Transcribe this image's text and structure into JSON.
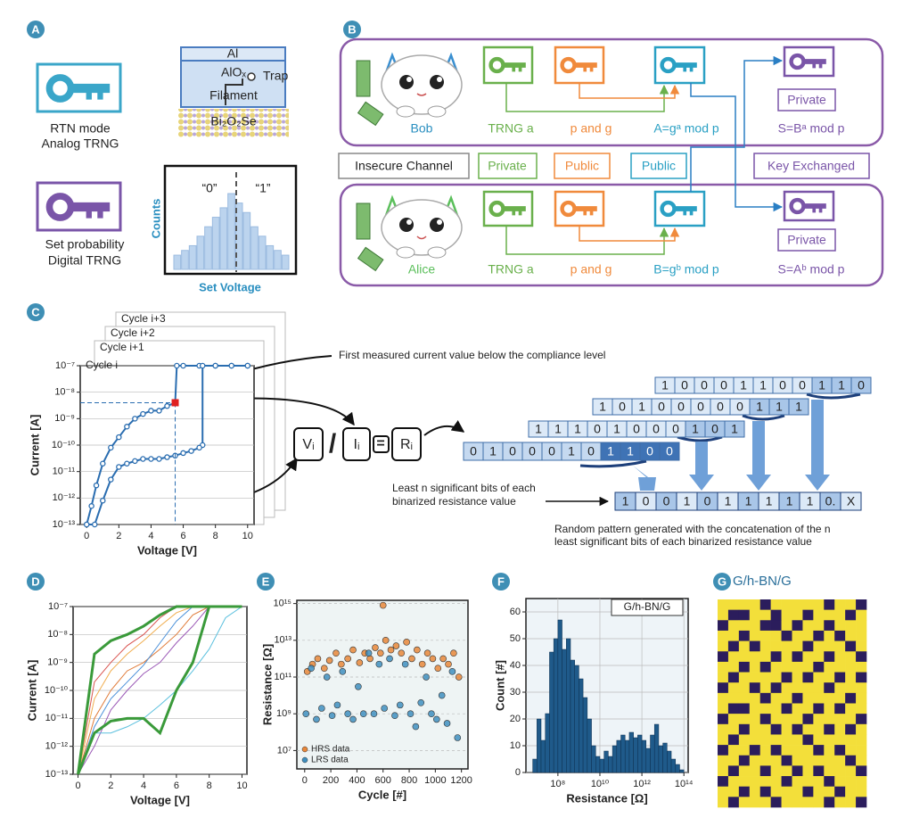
{
  "labels": [
    "A",
    "B",
    "C",
    "D",
    "E",
    "F",
    "G"
  ],
  "panel_a": {
    "rtn": [
      "RTN mode",
      "Analog TRNG"
    ],
    "device": {
      "top": "Al",
      "oxide": "AlOₓ",
      "trap": "Trap",
      "filament": "Filament",
      "substrate": "Bi₂O₂Se"
    },
    "set": [
      "Set probability",
      "Digital TRNG"
    ],
    "histogram": {
      "zero": "“0”",
      "one": "“1”",
      "y_label": "Counts",
      "x_label": "Set Voltage",
      "counts": [
        3,
        4,
        5,
        7,
        9,
        11,
        13,
        16,
        14,
        12,
        9,
        7,
        5,
        4,
        3
      ]
    }
  },
  "panel_b": {
    "bob": {
      "name": "Bob",
      "trng": "TRNG a",
      "params": "p and g",
      "public": "A=gᵃ mod p",
      "private": "Private",
      "shared": "S=Bᵃ mod p"
    },
    "alice": {
      "name": "Alice",
      "trng": "TRNG a",
      "params": "p and g",
      "public": "B=gᵇ mod p",
      "private": "Private",
      "shared": "S=Aᵇ mod p"
    },
    "legend": [
      "Insecure Channel",
      "Private",
      "Public",
      "Public",
      "Key Exchanged"
    ]
  },
  "panel_c": {
    "cycles": [
      "Cycle i+3",
      "Cycle i+2",
      "Cycle i+1",
      "Cycle i"
    ],
    "annotation": "First measured current value below the compliance level",
    "formula": [
      "Vᵢ",
      "/",
      "Iᵢ",
      "=",
      "Rᵢ"
    ],
    "bit_rows": [
      [
        "1",
        "0",
        "0",
        "0",
        "1",
        "1",
        "0",
        "0",
        "1",
        "1",
        "0"
      ],
      [
        "1",
        "0",
        "1",
        "0",
        "0",
        "0",
        "0",
        "0",
        "1",
        "1",
        "1"
      ],
      [
        "1",
        "1",
        "1",
        "0",
        "1",
        "0",
        "0",
        "0",
        "1",
        "0",
        "1"
      ],
      [
        "0",
        "1",
        "0",
        "0",
        "0",
        "1",
        "0",
        "1",
        "1",
        "0",
        "0"
      ]
    ],
    "result": [
      "1",
      "0",
      "0",
      "1",
      "0",
      "1",
      "1",
      "1",
      "1",
      "1",
      "0.",
      "X"
    ],
    "note_bits": [
      "Least n significant bits of each",
      "binarized resistance value"
    ],
    "note_pattern": [
      "Random pattern generated with the concatenation of the n",
      "least significant bits of each binarized resistance value"
    ]
  },
  "chart_data": [
    {
      "type": "line",
      "xlabel": "Voltage [V]",
      "ylabel": "Current [A]",
      "log_y": true,
      "xlim": [
        -0.4,
        10.4
      ],
      "ylim": [
        1e-13,
        1e-07
      ],
      "xticks": [
        0,
        2,
        4,
        6,
        8,
        10
      ],
      "yticks": [
        {
          "value": 1e-13,
          "label": "10⁻¹³"
        },
        {
          "value": 1e-12,
          "label": "10⁻¹²"
        },
        {
          "value": 1e-11,
          "label": "10⁻¹¹"
        },
        {
          "value": 1e-10,
          "label": "10⁻¹⁰"
        },
        {
          "value": 1e-09,
          "label": "10⁻⁹"
        },
        {
          "value": 1e-08,
          "label": "10⁻⁸"
        },
        {
          "value": 1e-07,
          "label": "10⁻⁷"
        }
      ],
      "grid": true,
      "markers": true,
      "series": [
        {
          "color": "#2a6db0",
          "width": 2,
          "x": [
            0,
            0.3,
            0.6,
            1,
            1.5,
            2,
            2.5,
            3,
            3.5,
            4,
            4.5,
            5,
            5.5,
            5.6,
            6,
            7,
            8,
            9,
            10
          ],
          "values": [
            1e-13,
            5e-13,
            3e-12,
            2e-11,
            8e-11,
            2e-10,
            5e-10,
            1e-09,
            1.5e-09,
            2e-09,
            2e-09,
            3e-09,
            4e-09,
            1e-07,
            1e-07,
            1e-07,
            1e-07,
            1e-07,
            1e-07
          ]
        },
        {
          "color": "#2a6db0",
          "width": 2,
          "x": [
            10,
            9,
            8,
            7.2,
            7.2,
            7,
            6.5,
            6,
            5.5,
            5,
            4.5,
            4,
            3.5,
            3,
            2.5,
            2,
            1.5,
            1,
            0.5,
            0
          ],
          "values": [
            1e-07,
            1e-07,
            1e-07,
            1e-07,
            1e-10,
            8e-11,
            6e-11,
            5e-11,
            4e-11,
            3.5e-11,
            3e-11,
            3e-11,
            3e-11,
            2.5e-11,
            2e-11,
            1.5e-11,
            5e-12,
            8e-13,
            1e-13,
            1e-13
          ]
        }
      ],
      "highlight": {
        "x": 5.5,
        "y": 4e-09,
        "color": "#e02020"
      }
    },
    {
      "type": "line",
      "xlabel": "Voltage [V]",
      "ylabel": "Current [A]",
      "log_y": true,
      "xlim": [
        -0.3,
        10.3
      ],
      "ylim": [
        1e-13,
        1e-07
      ],
      "xticks": [
        0,
        2,
        4,
        6,
        8,
        10
      ],
      "yticks": [
        {
          "value": 1e-13,
          "label": "10⁻¹³"
        },
        {
          "value": 1e-12,
          "label": "10⁻¹²"
        },
        {
          "value": 1e-11,
          "label": "10⁻¹¹"
        },
        {
          "value": 1e-10,
          "label": "10⁻¹⁰"
        },
        {
          "value": 1e-09,
          "label": "10⁻⁹"
        },
        {
          "value": 1e-08,
          "label": "10⁻⁸"
        },
        {
          "value": 1e-07,
          "label": "10⁻⁷"
        }
      ],
      "grid": true,
      "markers": false,
      "x": [
        0,
        1,
        2,
        3,
        4,
        5,
        6,
        7,
        8,
        9,
        10
      ],
      "series": [
        {
          "color": "#e07b39",
          "width": 1,
          "values": [
            1e-13,
            1e-11,
            1e-10,
            5e-10,
            1e-09,
            3e-09,
            1e-08,
            5e-08,
            1e-07,
            1e-07,
            1e-07
          ]
        },
        {
          "color": "#4a90d9",
          "width": 1,
          "values": [
            1e-13,
            5e-12,
            5e-11,
            2e-10,
            8e-10,
            5e-09,
            3e-08,
            1e-07,
            1e-07,
            1e-07,
            1e-07
          ]
        },
        {
          "color": "#d9534f",
          "width": 1,
          "values": [
            1e-13,
            2e-10,
            1e-09,
            4e-09,
            1e-08,
            4e-08,
            1e-07,
            1e-07,
            1e-07,
            1e-07,
            1e-07
          ]
        },
        {
          "color": "#9b59b6",
          "width": 1,
          "values": [
            1e-13,
            1e-12,
            2e-11,
            1e-10,
            4e-10,
            1e-09,
            5e-09,
            2e-08,
            1e-07,
            1e-07,
            1e-07
          ]
        },
        {
          "color": "#5bc0de",
          "width": 1,
          "values": [
            1e-13,
            3e-12,
            3e-12,
            5e-12,
            1e-11,
            3e-11,
            1e-10,
            5e-10,
            3e-09,
            4e-08,
            1e-07
          ]
        },
        {
          "color": "#f0ad4e",
          "width": 1,
          "values": [
            1e-13,
            5e-11,
            5e-10,
            2e-09,
            6e-09,
            2e-08,
            6e-08,
            1e-07,
            1e-07,
            1e-07,
            1e-07
          ]
        },
        {
          "color": "#3a9a3a",
          "width": 3,
          "values": [
            1e-13,
            2e-09,
            6e-09,
            1e-08,
            2e-08,
            5e-08,
            1e-07,
            1e-07,
            1e-07,
            1e-07,
            1e-07
          ]
        },
        {
          "color": "#3a9a3a",
          "width": 3,
          "values": [
            1e-13,
            3e-12,
            8e-12,
            1e-11,
            1e-11,
            3e-12,
            1e-10,
            1e-09,
            1e-07,
            1e-07,
            1e-07
          ]
        }
      ]
    },
    {
      "type": "scatter",
      "xlabel": "Cycle [#]",
      "ylabel": "Resistance [Ω]",
      "log_y": true,
      "xlim": [
        -60,
        1250
      ],
      "ylim": [
        1000000.0,
        1500000000000000.0
      ],
      "xticks": [
        0,
        200,
        400,
        600,
        800,
        1000,
        1200
      ],
      "yticks": [
        {
          "value": 10000000.0,
          "label": "10⁷"
        },
        {
          "value": 1000000000.0,
          "label": "10⁹"
        },
        {
          "value": 100000000000.0,
          "label": "10¹¹"
        },
        {
          "value": 10000000000000.0,
          "label": "10¹³"
        },
        {
          "value": 1000000000000000.0,
          "label": "10¹⁵"
        }
      ],
      "grid": true,
      "legend": "lower left",
      "series": [
        {
          "name": "HRS data",
          "color": "#e8873a",
          "x": [
            20,
            60,
            100,
            150,
            190,
            240,
            280,
            330,
            370,
            420,
            460,
            500,
            540,
            580,
            620,
            660,
            700,
            740,
            780,
            820,
            860,
            900,
            940,
            980,
            1020,
            1060,
            1100,
            1140,
            1180,
            600
          ],
          "values": [
            200000000000.0,
            500000000000.0,
            1000000000000.0,
            300000000000.0,
            800000000000.0,
            2000000000000.0,
            500000000000.0,
            1000000000000.0,
            3000000000000.0,
            600000000000.0,
            2000000000000.0,
            1000000000000.0,
            4000000000000.0,
            2000000000000.0,
            10000000000000.0,
            3000000000000.0,
            5000000000000.0,
            2000000000000.0,
            8000000000000.0,
            1000000000000.0,
            3000000000000.0,
            500000000000.0,
            2000000000000.0,
            1000000000000.0,
            300000000000.0,
            1000000000000.0,
            500000000000.0,
            2000000000000.0,
            100000000000.0,
            800000000000000.0
          ]
        },
        {
          "name": "LRS data",
          "color": "#3f8fbf",
          "x": [
            10,
            50,
            90,
            130,
            170,
            210,
            250,
            290,
            330,
            370,
            410,
            450,
            490,
            530,
            570,
            610,
            650,
            690,
            730,
            770,
            810,
            850,
            890,
            930,
            970,
            1010,
            1050,
            1090,
            1130,
            1170
          ],
          "values": [
            1000000000.0,
            300000000000.0,
            500000000.0,
            2000000000.0,
            100000000000.0,
            800000000.0,
            3000000000.0,
            200000000000.0,
            1000000000.0,
            500000000.0,
            30000000000.0,
            1000000000.0,
            2000000000000.0,
            1000000000.0,
            500000000000.0,
            2000000000.0,
            1000000000000.0,
            800000000.0,
            3000000000.0,
            500000000000.0,
            1000000000.0,
            200000000.0,
            4000000000.0,
            100000000000.0,
            1000000000.0,
            500000000.0,
            10000000000.0,
            300000000.0,
            200000000000.0,
            50000000.0
          ]
        }
      ]
    },
    {
      "type": "histogram",
      "title": "G/h-BN/G",
      "xlabel": "Resistance [Ω]",
      "ylabel": "Count [#]",
      "log_x": true,
      "xlim": [
        3000000.0,
        160000000000000.0
      ],
      "ylim": [
        0,
        65
      ],
      "xticks": [
        {
          "value": 100000000.0,
          "label": "10⁸"
        },
        {
          "value": 10000000000.0,
          "label": "10¹⁰"
        },
        {
          "value": 1000000000000.0,
          "label": "10¹²"
        },
        {
          "value": 100000000000000.0,
          "label": "10¹⁴"
        }
      ],
      "yticks": [
        0,
        10,
        20,
        30,
        40,
        50,
        60
      ],
      "grid": true,
      "color": "#1f5a8a",
      "bins": [
        6310000.0,
        10000000.0,
        15800000.0,
        25100000.0,
        39800000.0,
        63100000.0,
        100000000.0,
        158000000.0,
        251000000.0,
        398000000.0,
        631000000.0,
        1000000000.0,
        1580000000.0,
        2510000000.0,
        3980000000.0,
        6310000000.0,
        10000000000.0,
        15800000000.0,
        25100000000.0,
        39800000000.0,
        63100000000.0,
        100000000000.0,
        158000000000.0,
        251000000000.0,
        398000000000.0,
        631000000000.0,
        1000000000000.0,
        1580000000000.0,
        2510000000000.0,
        3980000000000.0,
        6310000000000.0,
        10000000000000.0,
        15800000000000.0,
        25100000000000.0,
        39800000000000.0,
        63100000000000.0,
        100000000000000.0
      ],
      "values": [
        5,
        20,
        12,
        22,
        45,
        50,
        57,
        46,
        50,
        42,
        40,
        35,
        28,
        20,
        10,
        6,
        5,
        8,
        6,
        10,
        12,
        14,
        12,
        15,
        13,
        14,
        12,
        9,
        14,
        18,
        10,
        11,
        8,
        5,
        3,
        1
      ]
    }
  ],
  "panel_g": {
    "title": "G/h-BN/G",
    "colors": [
      "#2b1d5c",
      "#f3df3a"
    ],
    "cells": [
      [
        1,
        1,
        1,
        1,
        0,
        1,
        1,
        1,
        1,
        1,
        0,
        1,
        1,
        0
      ],
      [
        1,
        0,
        0,
        1,
        1,
        0,
        1,
        1,
        0,
        1,
        1,
        1,
        0,
        1
      ],
      [
        0,
        1,
        1,
        1,
        0,
        0,
        1,
        0,
        1,
        1,
        0,
        1,
        1,
        1
      ],
      [
        1,
        1,
        0,
        1,
        1,
        1,
        0,
        1,
        1,
        0,
        1,
        0,
        1,
        1
      ],
      [
        1,
        0,
        1,
        0,
        1,
        1,
        1,
        1,
        0,
        1,
        1,
        1,
        0,
        1
      ],
      [
        0,
        1,
        1,
        1,
        1,
        0,
        1,
        0,
        1,
        1,
        0,
        1,
        1,
        0
      ],
      [
        1,
        1,
        0,
        1,
        0,
        1,
        1,
        1,
        1,
        0,
        1,
        1,
        1,
        1
      ],
      [
        1,
        0,
        1,
        1,
        1,
        1,
        0,
        1,
        0,
        1,
        1,
        0,
        1,
        0
      ],
      [
        0,
        1,
        1,
        0,
        1,
        0,
        1,
        1,
        1,
        1,
        0,
        1,
        1,
        1
      ],
      [
        1,
        1,
        1,
        1,
        0,
        1,
        1,
        0,
        1,
        1,
        1,
        1,
        0,
        1
      ],
      [
        1,
        0,
        0,
        1,
        1,
        1,
        0,
        1,
        1,
        0,
        1,
        0,
        1,
        1
      ],
      [
        0,
        1,
        1,
        1,
        0,
        1,
        1,
        1,
        0,
        1,
        1,
        1,
        1,
        0
      ],
      [
        1,
        1,
        0,
        1,
        1,
        0,
        1,
        0,
        1,
        1,
        0,
        1,
        0,
        1
      ],
      [
        1,
        0,
        1,
        1,
        1,
        1,
        1,
        1,
        0,
        1,
        1,
        1,
        1,
        1
      ],
      [
        0,
        1,
        1,
        0,
        1,
        0,
        1,
        1,
        1,
        0,
        1,
        0,
        1,
        1
      ],
      [
        1,
        1,
        0,
        1,
        1,
        1,
        0,
        1,
        1,
        1,
        1,
        1,
        0,
        1
      ],
      [
        1,
        0,
        1,
        1,
        0,
        1,
        1,
        0,
        1,
        0,
        1,
        1,
        1,
        0
      ],
      [
        0,
        1,
        1,
        1,
        1,
        1,
        0,
        1,
        1,
        1,
        0,
        1,
        1,
        1
      ],
      [
        1,
        1,
        0,
        1,
        0,
        1,
        1,
        1,
        0,
        1,
        1,
        0,
        1,
        1
      ],
      [
        1,
        0,
        1,
        1,
        1,
        0,
        1,
        1,
        1,
        1,
        0,
        1,
        1,
        0
      ]
    ]
  }
}
